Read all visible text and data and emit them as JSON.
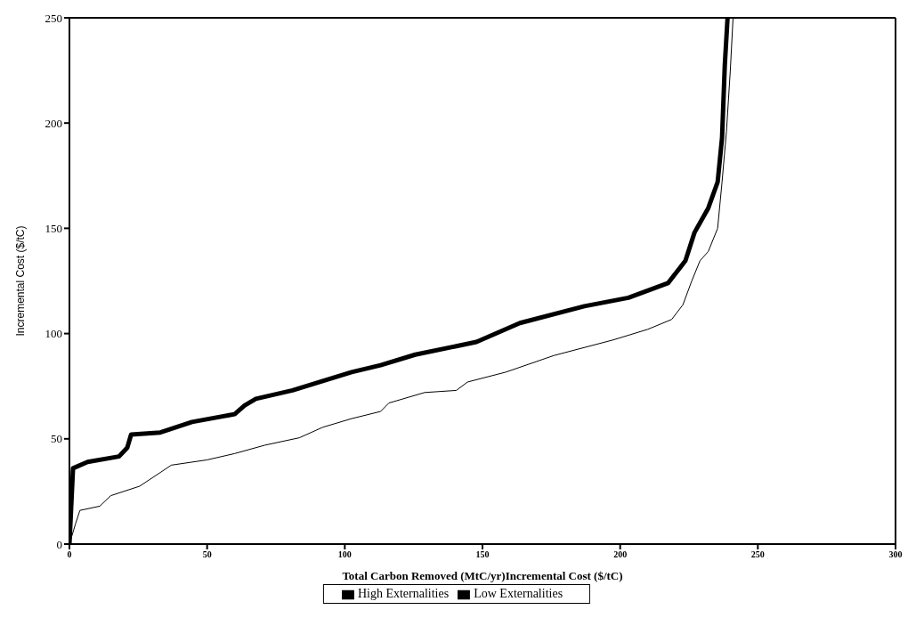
{
  "chart_data": {
    "type": "line",
    "xlabel": "Total Carbon Removed (MtC/yr)Incremental Cost  ($/tC)",
    "ylabel": "Incremental Cost  ($/tC)",
    "xlim": [
      0,
      300
    ],
    "xticks": [
      0,
      50,
      100,
      150,
      200,
      250,
      300
    ],
    "ylim": [
      0,
      250
    ],
    "yticks": [
      0,
      50,
      100,
      150,
      200,
      250
    ],
    "grid": false,
    "legend": "bottom",
    "marker": "none",
    "line_style": "solid",
    "series": [
      {
        "name": "High Externalities",
        "color": "#000000",
        "x": [
          0,
          2.2,
          3.8,
          11,
          15,
          25.5,
          33,
          37,
          50,
          60,
          71,
          83.5,
          92,
          102.5,
          113,
          116,
          129,
          140.5,
          144.6,
          158.5,
          176,
          197.5,
          210,
          218.7,
          222.8,
          226,
          229,
          232,
          235.4,
          237,
          238.6,
          240,
          241
        ],
        "values": [
          0,
          9.6,
          16,
          18,
          23,
          27.5,
          34,
          37.5,
          40,
          43,
          47,
          50.5,
          55.5,
          59.6,
          63,
          67,
          72,
          73,
          77,
          81.7,
          89.6,
          97,
          102,
          106.7,
          113.7,
          125,
          134.6,
          139,
          150,
          172,
          196,
          225,
          250
        ]
      },
      {
        "name": "Low Externalities",
        "color": "#000000",
        "x": [
          0,
          1.3,
          6.6,
          18,
          21,
          22.4,
          33,
          44.5,
          60,
          63.6,
          67.7,
          81,
          92,
          102.5,
          113,
          125.6,
          140.5,
          147.8,
          163.6,
          187,
          203,
          217.4,
          223.7,
          227,
          232,
          235.4,
          237,
          238,
          239
        ],
        "values": [
          0,
          36,
          39,
          41.6,
          45.8,
          52,
          53,
          58,
          61.7,
          65.8,
          69,
          73,
          77.5,
          81.7,
          85,
          90,
          94,
          96,
          105,
          113,
          117,
          124,
          134.6,
          148,
          159.6,
          172,
          193,
          227.5,
          250
        ]
      }
    ]
  }
}
